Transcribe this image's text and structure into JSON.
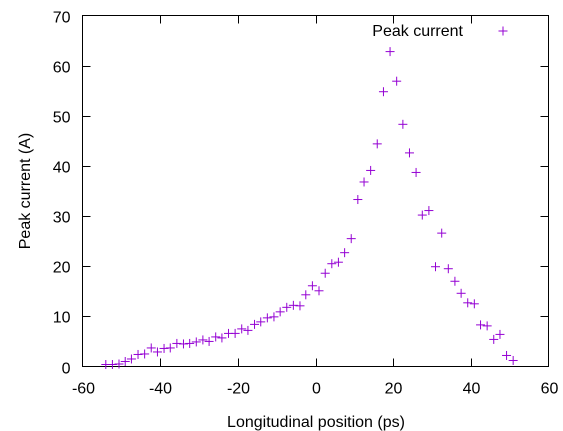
{
  "chart_data": {
    "type": "scatter",
    "title": "",
    "xlabel": "Longitudinal position (ps)",
    "ylabel": "Peak current (A)",
    "xlim": [
      -60,
      60
    ],
    "ylim": [
      0,
      70
    ],
    "x_ticks": [
      -60,
      -40,
      -20,
      0,
      20,
      40,
      60
    ],
    "y_ticks": [
      0,
      10,
      20,
      30,
      40,
      50,
      60,
      70
    ],
    "grid": false,
    "legend_position": "top-right",
    "marker": "+",
    "color": "#9400d3",
    "series": [
      {
        "name": "Peak current",
        "points": [
          [
            -54,
            0.4
          ],
          [
            -52.3,
            0.4
          ],
          [
            -50.6,
            0.5
          ],
          [
            -49.0,
            1.0
          ],
          [
            -47.4,
            1.5
          ],
          [
            -45.7,
            2.4
          ],
          [
            -44.0,
            2.5
          ],
          [
            -42.3,
            3.7
          ],
          [
            -40.7,
            2.9
          ],
          [
            -39.0,
            3.6
          ],
          [
            -37.4,
            3.7
          ],
          [
            -35.7,
            4.6
          ],
          [
            -34.0,
            4.5
          ],
          [
            -32.4,
            4.6
          ],
          [
            -30.7,
            4.9
          ],
          [
            -29.0,
            5.3
          ],
          [
            -27.4,
            5.0
          ],
          [
            -25.7,
            5.9
          ],
          [
            -24.1,
            5.7
          ],
          [
            -22.4,
            6.6
          ],
          [
            -20.7,
            6.6
          ],
          [
            -19.0,
            7.5
          ],
          [
            -17.4,
            7.2
          ],
          [
            -15.7,
            8.4
          ],
          [
            -14.1,
            8.9
          ],
          [
            -12.4,
            9.7
          ],
          [
            -10.7,
            9.9
          ],
          [
            -9.1,
            10.9
          ],
          [
            -7.4,
            11.8
          ],
          [
            -5.7,
            12.2
          ],
          [
            -4.0,
            12.1
          ],
          [
            -2.5,
            14.3
          ],
          [
            -0.8,
            16.1
          ],
          [
            0.9,
            15.1
          ],
          [
            2.5,
            18.6
          ],
          [
            4.2,
            20.5
          ],
          [
            5.9,
            20.8
          ],
          [
            7.5,
            22.7
          ],
          [
            9.2,
            25.5
          ],
          [
            10.9,
            33.3
          ],
          [
            12.5,
            36.8
          ],
          [
            14.2,
            39.1
          ],
          [
            15.9,
            44.4
          ],
          [
            17.5,
            54.8
          ],
          [
            19.2,
            62.8
          ],
          [
            20.9,
            56.9
          ],
          [
            22.5,
            48.3
          ],
          [
            24.2,
            42.6
          ],
          [
            25.9,
            38.7
          ],
          [
            27.5,
            30.2
          ],
          [
            29.2,
            31.1
          ],
          [
            30.9,
            19.9
          ],
          [
            32.5,
            26.6
          ],
          [
            34.2,
            19.5
          ],
          [
            35.9,
            17.0
          ],
          [
            37.5,
            14.6
          ],
          [
            39.2,
            12.7
          ],
          [
            40.9,
            12.5
          ],
          [
            42.5,
            8.3
          ],
          [
            44.2,
            8.1
          ],
          [
            45.9,
            5.4
          ],
          [
            47.5,
            6.4
          ],
          [
            49.2,
            2.2
          ],
          [
            50.9,
            1.2
          ]
        ]
      }
    ]
  }
}
